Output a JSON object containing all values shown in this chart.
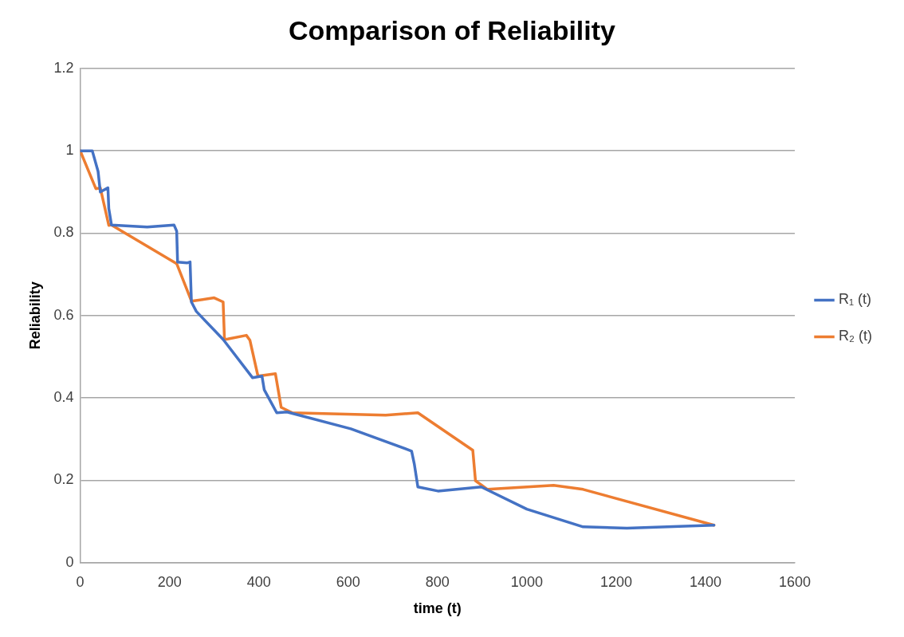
{
  "chart_data": {
    "type": "line",
    "title": "Comparison of Reliability",
    "xlabel": "time (t)",
    "ylabel": "Reliability",
    "xlim": [
      0,
      1600
    ],
    "xticks": [
      0,
      200,
      400,
      600,
      800,
      1000,
      1200,
      1400,
      1600
    ],
    "ylim": [
      0,
      1.2
    ],
    "yticks": [
      0,
      0.2,
      0.4,
      0.6,
      0.8,
      1,
      1.2
    ],
    "grid": "y",
    "legend": "right",
    "marker": "none",
    "line_style": "solid",
    "series": [
      {
        "name": "R₁ (t)",
        "color": "#4472c4",
        "x": [
          0,
          27,
          40,
          45,
          62,
          64,
          70,
          150,
          210,
          216,
          218,
          240,
          246,
          249,
          260,
          320,
          386,
          407,
          412,
          440,
          463,
          606,
          742,
          748,
          756,
          801,
          898,
          1000,
          1126,
          1224,
          1419
        ],
        "values": [
          1,
          1.0,
          0.95,
          0.9,
          0.91,
          0.86,
          0.82,
          0.815,
          0.82,
          0.805,
          0.73,
          0.728,
          0.73,
          0.633,
          0.61,
          0.542,
          0.449,
          0.453,
          0.42,
          0.364,
          0.366,
          0.325,
          0.271,
          0.24,
          0.184,
          0.174,
          0.184,
          0.13,
          0.087,
          0.084,
          0.091
        ]
      },
      {
        "name": "R₂ (t)",
        "color": "#ed7d31",
        "x": [
          0,
          35,
          45,
          64,
          70,
          216,
          249,
          300,
          320,
          323,
          330,
          372,
          380,
          398,
          437,
          450,
          475,
          684,
          756,
          879,
          885,
          912,
          1060,
          1126,
          1419
        ],
        "values": [
          1,
          0.908,
          0.91,
          0.819,
          0.82,
          0.726,
          0.635,
          0.643,
          0.633,
          0.542,
          0.543,
          0.552,
          0.54,
          0.453,
          0.459,
          0.377,
          0.364,
          0.358,
          0.364,
          0.273,
          0.199,
          0.178,
          0.188,
          0.178,
          0.091
        ]
      }
    ]
  }
}
